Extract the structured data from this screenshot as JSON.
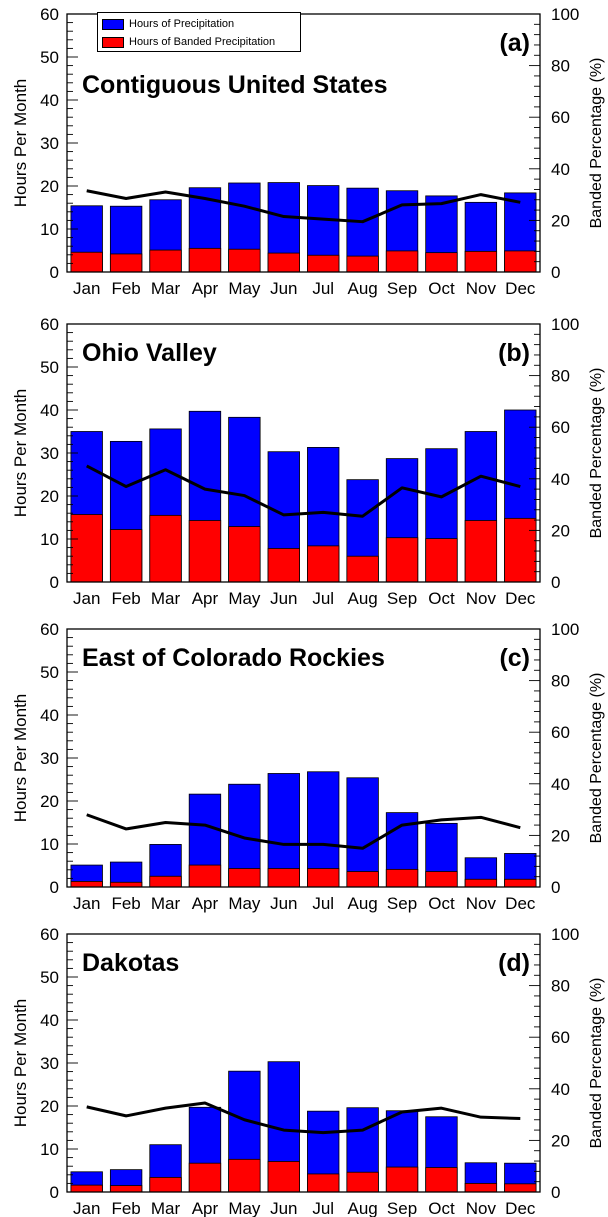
{
  "legend": {
    "precip_label": "Hours of Precipitation",
    "banded_label": "Hours of Banded Precipitation"
  },
  "colors": {
    "precip": "#0000ff",
    "banded": "#ff0000",
    "percentage": "#000000"
  },
  "chart_data": [
    {
      "type": "bar",
      "panel": "(a)",
      "region": "Contiguous United States",
      "categories": [
        "Jan",
        "Feb",
        "Mar",
        "Apr",
        "May",
        "Jun",
        "Jul",
        "Aug",
        "Sep",
        "Oct",
        "Nov",
        "Dec"
      ],
      "ylabel": "Hours Per Month",
      "y2label": "Banded Percentage (%)",
      "ylim": [
        0,
        60
      ],
      "y2lim": [
        0,
        100
      ],
      "yticks": [
        0,
        10,
        20,
        30,
        40,
        50,
        60
      ],
      "y2ticks": [
        0,
        20,
        40,
        60,
        80,
        100
      ],
      "series": [
        {
          "name": "Hours of Precipitation",
          "values": [
            15.4,
            15.3,
            16.8,
            19.6,
            20.7,
            20.8,
            20.1,
            19.5,
            18.9,
            17.7,
            16.2,
            18.4
          ]
        },
        {
          "name": "Hours of Banded Precipitation",
          "values": [
            4.6,
            4.2,
            5.1,
            5.5,
            5.3,
            4.4,
            3.9,
            3.7,
            4.9,
            4.5,
            4.8,
            4.9
          ]
        }
      ],
      "line": {
        "axis": "right",
        "values": [
          31.5,
          28.5,
          31,
          28.5,
          25.5,
          21.5,
          20.5,
          19.5,
          26,
          26.5,
          30,
          27
        ]
      }
    },
    {
      "type": "bar",
      "panel": "(b)",
      "region": "Ohio Valley",
      "categories": [
        "Jan",
        "Feb",
        "Mar",
        "Apr",
        "May",
        "Jun",
        "Jul",
        "Aug",
        "Sep",
        "Oct",
        "Nov",
        "Dec"
      ],
      "ylabel": "Hours Per Month",
      "y2label": "Banded Percentage (%)",
      "ylim": [
        0,
        60
      ],
      "y2lim": [
        0,
        100
      ],
      "yticks": [
        0,
        10,
        20,
        30,
        40,
        50,
        60
      ],
      "y2ticks": [
        0,
        20,
        40,
        60,
        80,
        100
      ],
      "series": [
        {
          "name": "Hours of Precipitation",
          "values": [
            35,
            32.7,
            35.6,
            39.7,
            38.3,
            30.3,
            31.3,
            23.8,
            28.7,
            31,
            35,
            40
          ]
        },
        {
          "name": "Hours of Banded Precipitation",
          "values": [
            15.7,
            12.2,
            15.5,
            14.3,
            12.9,
            7.8,
            8.4,
            6,
            10.3,
            10.1,
            14.3,
            14.8
          ]
        }
      ],
      "line": {
        "axis": "right",
        "values": [
          45,
          37,
          43.5,
          36,
          33.5,
          26,
          27,
          25.5,
          36.5,
          33,
          41,
          37
        ]
      }
    },
    {
      "type": "bar",
      "panel": "(c)",
      "region": "East of Colorado Rockies",
      "categories": [
        "Jan",
        "Feb",
        "Mar",
        "Apr",
        "May",
        "Jun",
        "Jul",
        "Aug",
        "Sep",
        "Oct",
        "Nov",
        "Dec"
      ],
      "ylabel": "Hours Per Month",
      "y2label": "Banded Percentage (%)",
      "ylim": [
        0,
        60
      ],
      "y2lim": [
        0,
        100
      ],
      "yticks": [
        0,
        10,
        20,
        30,
        40,
        50,
        60
      ],
      "y2ticks": [
        0,
        20,
        40,
        60,
        80,
        100
      ],
      "series": [
        {
          "name": "Hours of Precipitation",
          "values": [
            5.1,
            5.8,
            9.9,
            21.6,
            23.9,
            26.4,
            26.8,
            25.4,
            17.3,
            14.8,
            6.8,
            7.8
          ]
        },
        {
          "name": "Hours of Banded Precipitation",
          "values": [
            1.3,
            1.1,
            2.5,
            5.1,
            4.3,
            4.3,
            4.3,
            3.6,
            4.1,
            3.6,
            1.8,
            1.8
          ]
        }
      ],
      "line": {
        "axis": "right",
        "values": [
          28,
          22.5,
          25,
          24,
          19,
          16.5,
          16.5,
          15,
          24,
          26,
          27,
          23
        ]
      }
    },
    {
      "type": "bar",
      "panel": "(d)",
      "region": "Dakotas",
      "categories": [
        "Jan",
        "Feb",
        "Mar",
        "Apr",
        "May",
        "Jun",
        "Jul",
        "Aug",
        "Sep",
        "Oct",
        "Nov",
        "Dec"
      ],
      "ylabel": "Hours Per Month",
      "y2label": "Banded Percentage (%)",
      "ylim": [
        0,
        60
      ],
      "y2lim": [
        0,
        100
      ],
      "yticks": [
        0,
        10,
        20,
        30,
        40,
        50,
        60
      ],
      "y2ticks": [
        0,
        20,
        40,
        60,
        80,
        100
      ],
      "series": [
        {
          "name": "Hours of Precipitation",
          "values": [
            4.7,
            5.2,
            11,
            19.7,
            28.1,
            30.3,
            18.8,
            19.6,
            18.9,
            17.5,
            6.8,
            6.7
          ]
        },
        {
          "name": "Hours of Banded Precipitation",
          "values": [
            1.6,
            1.5,
            3.4,
            6.7,
            7.6,
            7.1,
            4.2,
            4.6,
            5.8,
            5.7,
            2,
            1.9
          ]
        }
      ],
      "line": {
        "axis": "right",
        "values": [
          33,
          29.5,
          32.5,
          34.5,
          28,
          24,
          23,
          24,
          31,
          32.5,
          29,
          28.5
        ]
      }
    }
  ]
}
